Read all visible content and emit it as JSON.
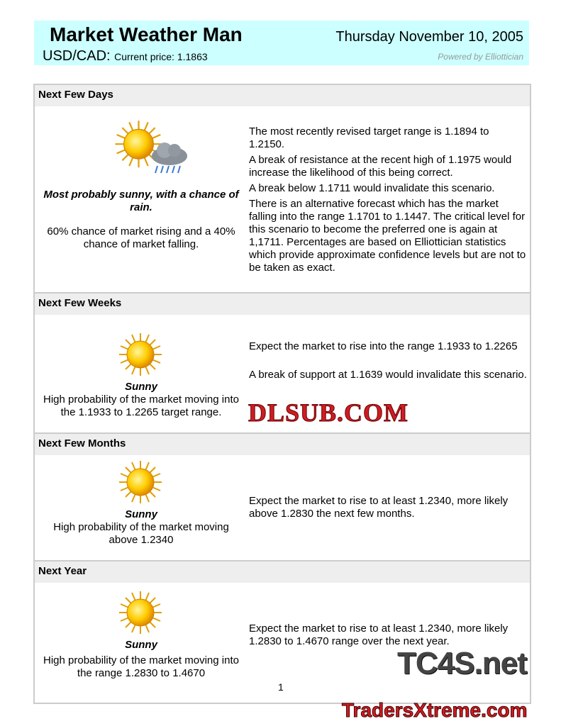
{
  "header": {
    "title": "Market Weather Man",
    "date": "Thursday November 10, 2005",
    "pair": "USD/CAD:",
    "price": "Current price: 1.1863",
    "powered": "Powered by Elliottician"
  },
  "sections": [
    {
      "heading": "Next Few Days",
      "icon": "sun-and-rain-cloud",
      "summary": "Most probably sunny, with a chance of rain.",
      "detail": "60% chance of market rising and a 40% chance of market falling.",
      "paragraphs": [
        "The most recently revised target range is 1.1894 to 1.2150.",
        "A break of resistance at the recent high of 1.1975 would increase the likelihood of  this being correct.",
        "A break below 1.1711 would invalidate this scenario.",
        "There is an alternative forecast which has the market falling into the range 1.1701 to 1.1447. The critical level for this scenario to become the preferred one is again at 1,1711. Percentages are based on Elliottician statistics which provide approximate confidence levels but are not to be taken as exact."
      ]
    },
    {
      "heading": "Next Few Weeks",
      "icon": "sun",
      "summary": "Sunny",
      "detail": "High probability of the market moving into the 1.1933 to 1.2265 target range.",
      "paragraphs": [
        "Expect the market to rise into the range 1.1933 to 1.2265",
        "A break of support at 1.1639 would invalidate this scenario."
      ]
    },
    {
      "heading": "Next Few Months",
      "icon": "sun",
      "summary": "Sunny",
      "detail": "High probability of the market moving above 1.2340",
      "paragraphs": [
        "Expect the market to rise to at least 1.2340, more likely above 1.2830 the next few months."
      ]
    },
    {
      "heading": "Next Year",
      "icon": "sun",
      "summary": "Sunny",
      "detail": "High probability of the market moving into the range 1.2830 to 1.4670",
      "paragraphs": [
        "Expect the market to rise to at least 1.2340, more likely 1.2830 to 1.4670 range over the next year."
      ]
    }
  ],
  "page_number": "1",
  "watermarks": {
    "top": "TC4S.net",
    "middle": "DLSUB.COM",
    "bottom": "TradersXtreme.com"
  }
}
